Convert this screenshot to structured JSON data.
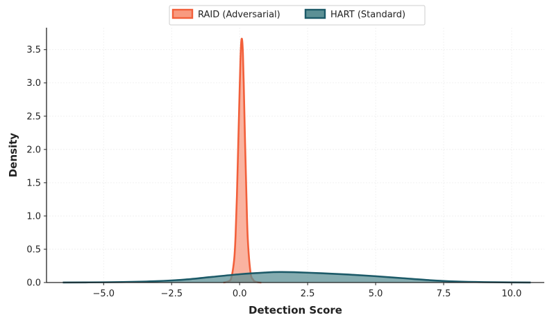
{
  "chart_data": {
    "type": "area",
    "xlabel": "Detection Score",
    "ylabel": "Density",
    "xlim": [
      -7.1,
      11.2
    ],
    "ylim": [
      0,
      3.83
    ],
    "xticks": [
      -5.0,
      -2.5,
      0.0,
      2.5,
      5.0,
      7.5,
      10.0
    ],
    "xtick_labels": [
      "−5.0",
      "−2.5",
      "0.0",
      "2.5",
      "5.0",
      "7.5",
      "10.0"
    ],
    "yticks": [
      0.0,
      0.5,
      1.0,
      1.5,
      2.0,
      2.5,
      3.0,
      3.5
    ],
    "ytick_labels": [
      "0.0",
      "0.5",
      "1.0",
      "1.5",
      "2.0",
      "2.5",
      "3.0",
      "3.5"
    ],
    "grid": true,
    "legend_position": "top-center",
    "series": [
      {
        "name": "RAID (Adversarial)",
        "color": "#f25f3a",
        "fill": "#f89a80",
        "x": [
          -0.6,
          -0.4,
          -0.3,
          -0.2,
          -0.15,
          -0.1,
          -0.05,
          0.0,
          0.03,
          0.06,
          0.09,
          0.12,
          0.15,
          0.2,
          0.25,
          0.3,
          0.4,
          0.5,
          0.6,
          0.8
        ],
        "y": [
          0.0,
          0.02,
          0.08,
          0.35,
          0.7,
          1.3,
          2.1,
          2.9,
          3.35,
          3.62,
          3.65,
          3.45,
          3.0,
          2.1,
          1.3,
          0.65,
          0.15,
          0.04,
          0.01,
          0.0
        ]
      },
      {
        "name": "HART (Standard)",
        "color": "#1c5a68",
        "fill": "#5c9095",
        "x": [
          -6.5,
          -5.0,
          -4.0,
          -3.0,
          -2.0,
          -1.0,
          0.0,
          1.0,
          1.5,
          2.0,
          3.0,
          4.0,
          5.0,
          6.0,
          7.0,
          8.0,
          9.0,
          10.0,
          10.7
        ],
        "y": [
          0.001,
          0.004,
          0.01,
          0.022,
          0.045,
          0.085,
          0.125,
          0.152,
          0.158,
          0.155,
          0.14,
          0.12,
          0.095,
          0.065,
          0.035,
          0.015,
          0.006,
          0.002,
          0.001
        ]
      }
    ]
  }
}
